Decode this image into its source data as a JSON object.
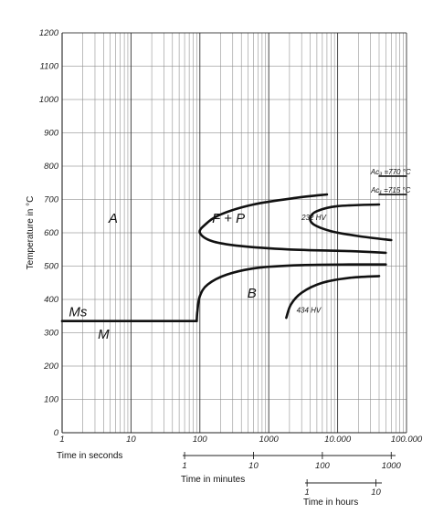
{
  "chart_data": {
    "type": "line",
    "title": "",
    "ylabel": "Temperature in °C",
    "ylim": [
      0,
      1200
    ],
    "yscale": "linear",
    "xscale": "log",
    "xlim": [
      1,
      100000
    ],
    "grid": true,
    "y_ticks": [
      "0",
      "100",
      "200",
      "300",
      "400",
      "500",
      "600",
      "700",
      "800",
      "900",
      "1000",
      "1100",
      "1200"
    ],
    "axes": [
      {
        "label": "Time in seconds",
        "ticks": [
          {
            "label": "1",
            "value": 1
          },
          {
            "label": "10",
            "value": 10
          },
          {
            "label": "100",
            "value": 100
          },
          {
            "label": "1000",
            "value": 1000
          },
          {
            "label": "10.000",
            "value": 10000
          },
          {
            "label": "100.000",
            "value": 100000
          }
        ]
      },
      {
        "label": "Time in minutes",
        "ticks": [
          {
            "label": "1",
            "value": 60
          },
          {
            "label": "10",
            "value": 600
          },
          {
            "label": "100",
            "value": 6000
          },
          {
            "label": "1000",
            "value": 60000
          }
        ]
      },
      {
        "label": "Time in hours",
        "ticks": [
          {
            "label": "1",
            "value": 3600
          },
          {
            "label": "10",
            "value": 36000
          }
        ]
      }
    ],
    "series": [
      {
        "x": [
          7000,
          2500,
          600,
          200,
          120,
          100,
          150,
          400,
          2000,
          15000,
          50000
        ],
        "y": [
          715,
          705,
          685,
          655,
          625,
          600,
          575,
          560,
          550,
          545,
          540
        ]
      },
      {
        "x": [
          40000,
          10000,
          5000,
          4000,
          4500,
          8000,
          20000,
          60000
        ],
        "y": [
          685,
          680,
          665,
          645,
          625,
          605,
          590,
          578
        ]
      },
      {
        "x": [
          90,
          92,
          100,
          130,
          250,
          700,
          3000,
          15000,
          50000
        ],
        "y": [
          335,
          365,
          410,
          445,
          475,
          495,
          503,
          505,
          505
        ]
      },
      {
        "x": [
          1800,
          2100,
          3000,
          6000,
          15000,
          40000
        ],
        "y": [
          345,
          385,
          420,
          450,
          465,
          470
        ]
      },
      {
        "x": [
          1,
          90
        ],
        "y": [
          335,
          335
        ]
      },
      {
        "x": [
          40000,
          100000
        ],
        "y": [
          770,
          770
        ]
      },
      {
        "x": [
          40000,
          100000
        ],
        "y": [
          715,
          715
        ]
      }
    ],
    "annotations": [
      {
        "text": "A"
      },
      {
        "text": "F + P"
      },
      {
        "text": "232 HV"
      },
      {
        "text": "B"
      },
      {
        "text": "434 HV"
      },
      {
        "text": "Ms"
      },
      {
        "text": "M"
      },
      {
        "text": "Ac₃ =770 °C"
      },
      {
        "text": "Ac₁ =715 °C"
      }
    ]
  }
}
